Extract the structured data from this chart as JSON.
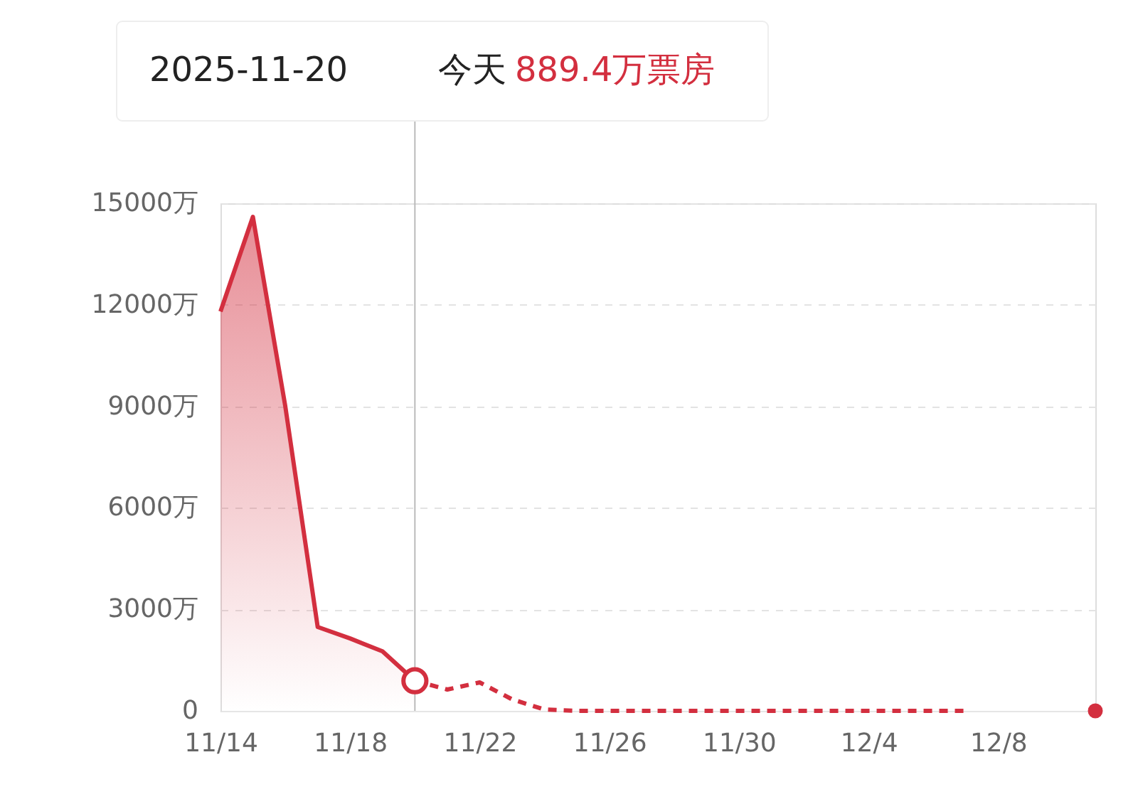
{
  "chart_data": {
    "type": "area",
    "x": [
      "2025-11-14",
      "2025-11-15",
      "2025-11-16",
      "2025-11-17",
      "2025-11-18",
      "2025-11-19",
      "2025-11-20"
    ],
    "series": [
      {
        "color": "#d32f3f",
        "line_style": "solid",
        "values": [
          11800,
          14600,
          9000,
          2480,
          2140,
          1760,
          889.4
        ]
      },
      {
        "type": "line",
        "color": "#d32f3f",
        "line_style": "dotted",
        "x": [
          "2025-11-20",
          "2025-11-21",
          "2025-11-22",
          "2025-11-23",
          "2025-11-24",
          "2025-11-25",
          "2025-11-26",
          "2025-11-27",
          "2025-11-28",
          "2025-11-29",
          "2025-11-30",
          "2025-12-01",
          "2025-12-02",
          "2025-12-03",
          "2025-12-04",
          "2025-12-05",
          "2025-12-06",
          "2025-12-07"
        ],
        "values": [
          889.4,
          630,
          840,
          340,
          40,
          0,
          0,
          0,
          0,
          0,
          0,
          0,
          0,
          0,
          0,
          0,
          0,
          0
        ]
      },
      {
        "type": "scatter",
        "color": "#d32f3f",
        "marker": "circle",
        "x": [
          "2025-12-11"
        ],
        "values": [
          0
        ]
      }
    ],
    "xlim": [
      "2025-11-14",
      "2025-12-11"
    ],
    "xticks": [
      {
        "value": "2025-11-14",
        "label": "11/14"
      },
      {
        "value": "2025-11-18",
        "label": "11/18"
      },
      {
        "value": "2025-11-22",
        "label": "11/22"
      },
      {
        "value": "2025-11-26",
        "label": "11/26"
      },
      {
        "value": "2025-11-30",
        "label": "11/30"
      },
      {
        "value": "2025-12-04",
        "label": "12/4"
      },
      {
        "value": "2025-12-08",
        "label": "12/8"
      }
    ],
    "ylim": [
      0,
      15000
    ],
    "yticks": [
      0,
      {
        "value": 3000,
        "label": "3000万"
      },
      {
        "value": 6000,
        "label": "6000万"
      },
      {
        "value": 9000,
        "label": "9000万"
      },
      {
        "value": 12000,
        "label": "12000万"
      },
      {
        "value": 15000,
        "label": "15000万"
      }
    ],
    "grid": "y",
    "ref_lines": [
      {
        "axis": "x",
        "value": "2025-11-20",
        "color": "#bbbbbb"
      }
    ],
    "annotations": [
      "2025-11-20",
      "今天",
      "889.4万票房"
    ]
  }
}
